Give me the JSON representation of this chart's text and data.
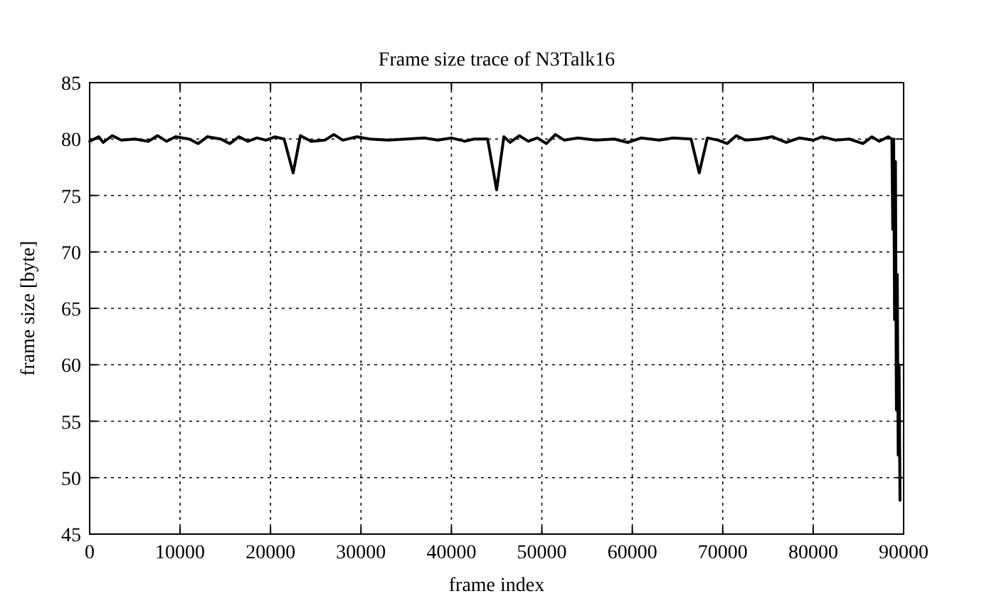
{
  "chart_data": {
    "type": "line",
    "title": "Frame size trace of N3Talk16",
    "xlabel": "frame index",
    "ylabel": "frame size [byte]",
    "xlim": [
      0,
      90000
    ],
    "xticks": [
      0,
      10000,
      20000,
      30000,
      40000,
      50000,
      60000,
      70000,
      80000,
      90000
    ],
    "ylim": [
      45,
      85
    ],
    "yticks": [
      45,
      50,
      55,
      60,
      65,
      70,
      75,
      80,
      85
    ],
    "grid": true,
    "marker": "none",
    "line_style": "solid",
    "series": [
      {
        "color": "#000000",
        "x": [
          0,
          1000,
          1500,
          2500,
          3500,
          5000,
          6500,
          7500,
          8500,
          9500,
          11000,
          12000,
          13000,
          14500,
          15500,
          16500,
          17500,
          18500,
          19500,
          20500,
          21500,
          22500,
          23300,
          24500,
          26000,
          27000,
          28000,
          29500,
          31000,
          33000,
          35000,
          37000,
          38500,
          40000,
          41500,
          42500,
          44000,
          45000,
          45800,
          46500,
          47500,
          48500,
          49500,
          50500,
          51500,
          52500,
          54000,
          56000,
          58000,
          59500,
          61000,
          63000,
          64500,
          66500,
          67400,
          68300,
          69500,
          70500,
          71500,
          72500,
          74000,
          75500,
          77000,
          78500,
          80000,
          81000,
          82500,
          84000,
          85500,
          86500,
          87300,
          88300,
          88700,
          88800,
          88900,
          89000,
          89100,
          89200,
          89300,
          89400,
          89500,
          89600
        ],
        "values": [
          79.8,
          80.2,
          79.7,
          80.3,
          79.9,
          80.0,
          79.8,
          80.3,
          79.8,
          80.2,
          80.0,
          79.6,
          80.2,
          80.0,
          79.6,
          80.2,
          79.8,
          80.1,
          79.9,
          80.2,
          80.0,
          77.0,
          80.3,
          79.8,
          79.9,
          80.4,
          79.9,
          80.2,
          80.0,
          79.9,
          80.0,
          80.1,
          79.9,
          80.1,
          79.8,
          80.0,
          80.0,
          75.5,
          80.2,
          79.7,
          80.3,
          79.8,
          80.1,
          79.6,
          80.4,
          79.9,
          80.1,
          79.9,
          80.0,
          79.7,
          80.1,
          79.9,
          80.1,
          80.0,
          77.0,
          80.1,
          79.9,
          79.6,
          80.3,
          79.9,
          80.0,
          80.2,
          79.7,
          80.1,
          79.9,
          80.2,
          79.9,
          80.0,
          79.6,
          80.2,
          79.8,
          80.2,
          80.0,
          72,
          80,
          64,
          78,
          56,
          68,
          52,
          60,
          48
        ]
      }
    ]
  }
}
